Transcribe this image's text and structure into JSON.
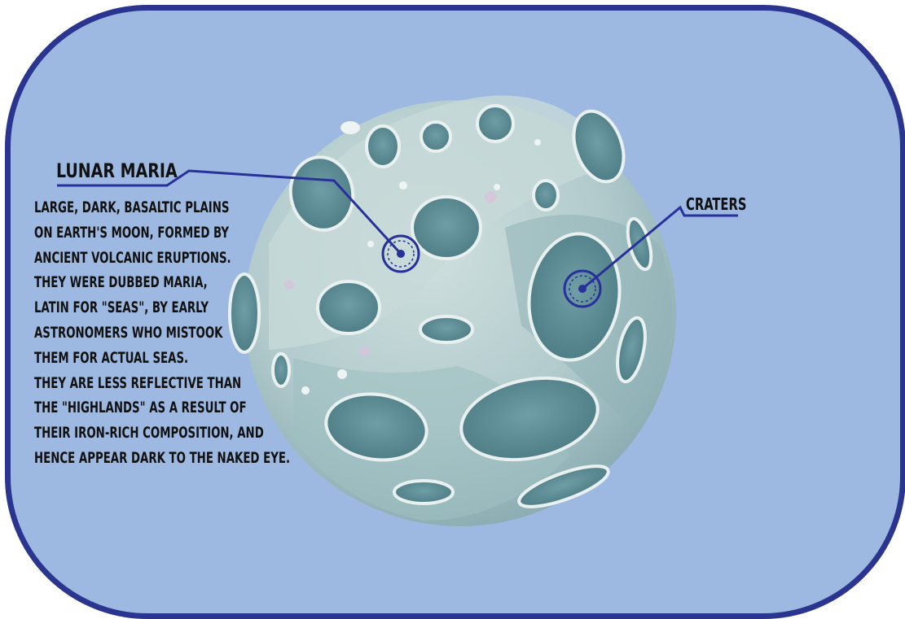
{
  "colors": {
    "background": "#9db9e1",
    "frame": "#2a3590",
    "moon_base": "#b7ccd0",
    "crater_fill": "#5f8e95",
    "leader_line": "#28309a"
  },
  "labels": {
    "lunar_maria_title": "LUNAR MARIA",
    "lunar_maria_description": [
      "LARGE, DARK, BASALTIC PLAINS",
      "ON EARTH'S MOON, FORMED BY",
      "ANCIENT VOLCANIC ERUPTIONS.",
      "THEY WERE DUBBED MARIA,",
      "LATIN FOR \"SEAS\", BY EARLY",
      "ASTRONOMERS WHO MISTOOK",
      "THEM FOR ACTUAL SEAS.",
      "THEY ARE LESS REFLECTIVE THAN",
      "THE \"HIGHLANDS\" AS A RESULT OF",
      "THEIR IRON-RICH COMPOSITION, AND",
      "HENCE APPEAR DARK TO THE NAKED EYE."
    ],
    "craters_title": "CRATERS"
  }
}
